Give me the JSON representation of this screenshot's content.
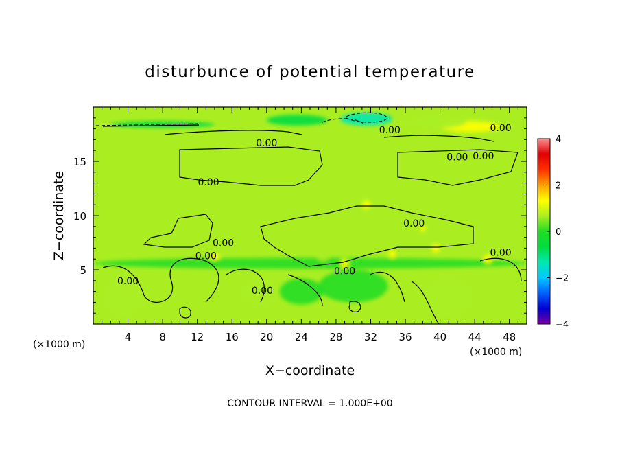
{
  "chart_data": {
    "type": "heatmap",
    "title": "disturbunce of potential temperature",
    "xlabel": "X−coordinate",
    "ylabel": "Z−coordinate",
    "x_unit_left": "(×1000 m)",
    "x_unit_right": "(×1000 m)",
    "xlim": [
      0,
      50
    ],
    "ylim": [
      0,
      20
    ],
    "x_ticks": [
      4,
      8,
      12,
      16,
      20,
      24,
      28,
      32,
      36,
      40,
      44,
      48
    ],
    "y_ticks": [
      5,
      10,
      15
    ],
    "colorbar": {
      "range": [
        -4,
        4
      ],
      "ticks": [
        -4,
        -2,
        0,
        2,
        4
      ],
      "tick_labels": [
        "−4",
        "−2",
        "0",
        "2",
        "4"
      ],
      "colors": [
        "#7a00a0",
        "#0000d0",
        "#0060ff",
        "#00c8ff",
        "#00e8b0",
        "#00dd40",
        "#22dd22",
        "#aaee22",
        "#ffff00",
        "#ffa000",
        "#ff3000",
        "#e00000",
        "#ff9090"
      ]
    },
    "background_value": 0.4,
    "anomalies": [
      {
        "x": 31.5,
        "z": 18.9,
        "value": -1.3,
        "rx": 3.0,
        "rz": 0.6
      },
      {
        "x": 23.5,
        "z": 18.8,
        "value": -0.8,
        "rx": 3.5,
        "rz": 0.5
      },
      {
        "x": 8.0,
        "z": 18.4,
        "value": -0.6,
        "rx": 6.0,
        "rz": 0.3
      },
      {
        "x": 43.5,
        "z": 18.2,
        "value": 1.6,
        "rx": 3.5,
        "rz": 0.5
      },
      {
        "x": 39.0,
        "z": 18.6,
        "value": 0.9,
        "rx": 4.0,
        "rz": 0.6
      },
      {
        "x": 25.0,
        "z": 5.6,
        "value": -0.3,
        "rx": 25.0,
        "rz": 0.5
      },
      {
        "x": 34.5,
        "z": 6.5,
        "value": 1.5,
        "rx": 0.4,
        "rz": 0.4
      },
      {
        "x": 29.0,
        "z": 5.6,
        "value": 1.4,
        "rx": 0.5,
        "rz": 0.4
      },
      {
        "x": 45.5,
        "z": 6.0,
        "value": 1.3,
        "rx": 0.5,
        "rz": 0.4
      },
      {
        "x": 31.5,
        "z": 11.0,
        "value": 1.2,
        "rx": 0.5,
        "rz": 0.4
      },
      {
        "x": 14.0,
        "z": 6.2,
        "value": 1.0,
        "rx": 0.6,
        "rz": 0.3
      },
      {
        "x": 26.5,
        "z": 6.2,
        "value": 0.9,
        "rx": 0.6,
        "rz": 0.4
      },
      {
        "x": 38.0,
        "z": 8.8,
        "value": 1.2,
        "rx": 0.3,
        "rz": 0.3
      },
      {
        "x": 39.5,
        "z": 7.0,
        "value": 1.0,
        "rx": 0.5,
        "rz": 0.4
      },
      {
        "x": 3.5,
        "z": 2.5,
        "value": 0.8,
        "rx": 2.5,
        "rz": 2.0
      },
      {
        "x": 19.0,
        "z": 3.0,
        "value": 0.8,
        "rx": 2.0,
        "rz": 1.5
      },
      {
        "x": 41.0,
        "z": 2.5,
        "value": 0.8,
        "rx": 3.0,
        "rz": 2.0
      },
      {
        "x": 30.0,
        "z": 3.5,
        "value": 0.1,
        "rx": 4.0,
        "rz": 1.5
      },
      {
        "x": 24.0,
        "z": 3.0,
        "value": 0.2,
        "rx": 2.5,
        "rz": 1.2
      }
    ],
    "contour_label_text": "0.00",
    "contour_labels": [
      {
        "x": 34.2,
        "z": 17.9
      },
      {
        "x": 47.0,
        "z": 18.1
      },
      {
        "x": 20.0,
        "z": 16.7
      },
      {
        "x": 42.0,
        "z": 15.4
      },
      {
        "x": 45.0,
        "z": 15.5
      },
      {
        "x": 13.3,
        "z": 13.1
      },
      {
        "x": 37.0,
        "z": 9.3
      },
      {
        "x": 15.0,
        "z": 7.5
      },
      {
        "x": 13.0,
        "z": 6.3
      },
      {
        "x": 29.0,
        "z": 4.9
      },
      {
        "x": 47.0,
        "z": 6.6
      },
      {
        "x": 4.0,
        "z": 4.0
      },
      {
        "x": 19.5,
        "z": 3.1
      }
    ],
    "contour_interval_text": "CONTOUR INTERVAL = 1.000E+00"
  }
}
